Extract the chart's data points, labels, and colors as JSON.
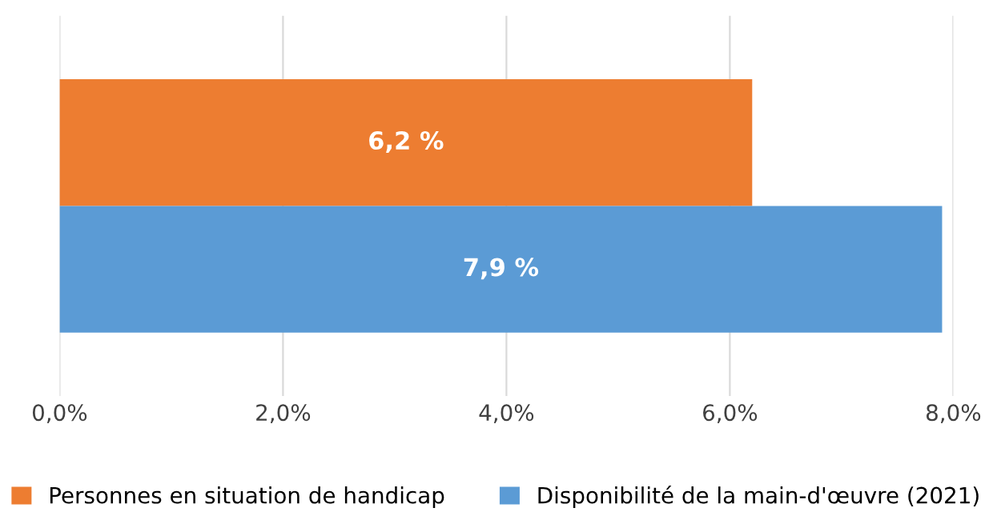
{
  "chart_data": {
    "type": "bar",
    "orientation": "horizontal",
    "categories": [
      null
    ],
    "series": [
      {
        "name": "Personnes en situation de handicap",
        "color": "#ed7d31",
        "values": [
          6.2
        ],
        "value_labels": [
          "6,2 %"
        ]
      },
      {
        "name": "Disponibilité de la main-d'œuvre (2021)",
        "color": "#5b9bd5",
        "values": [
          7.9
        ],
        "value_labels": [
          "7,9 %"
        ]
      }
    ],
    "xlim": [
      0,
      8
    ],
    "xticks": [
      {
        "value": 0,
        "label": "0,0%"
      },
      {
        "value": 2,
        "label": "2,0%"
      },
      {
        "value": 4,
        "label": "4,0%"
      },
      {
        "value": 6,
        "label": "6,0%"
      },
      {
        "value": 8,
        "label": "8,0%"
      }
    ],
    "grid": "x",
    "legend": "bottom"
  }
}
